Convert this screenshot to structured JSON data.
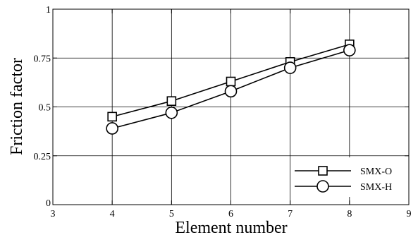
{
  "chart_data": {
    "type": "line",
    "title": "",
    "xlabel": "Element number",
    "ylabel": "Friction factor",
    "xlim": [
      3,
      9
    ],
    "ylim": [
      0,
      1
    ],
    "x_ticks": [
      3,
      4,
      5,
      6,
      7,
      8,
      9
    ],
    "y_ticks": [
      0,
      0.25,
      0.5,
      0.75,
      1
    ],
    "x_tick_labels": [
      "3",
      "4",
      "5",
      "6",
      "7",
      "8",
      "9"
    ],
    "y_tick_labels": [
      "0",
      "0.25",
      "0.5",
      "0.75",
      "1"
    ],
    "grid": true,
    "legend_position": "bottom-right",
    "x": [
      4,
      5,
      6,
      7,
      8
    ],
    "series": [
      {
        "name": "SMX-O",
        "marker": "square",
        "values": [
          0.45,
          0.53,
          0.63,
          0.73,
          0.82
        ]
      },
      {
        "name": "SMX-H",
        "marker": "circle",
        "values": [
          0.39,
          0.47,
          0.58,
          0.7,
          0.79
        ]
      }
    ],
    "colors": {
      "line": "#000000",
      "grid": "#000000",
      "background": "#ffffff"
    }
  }
}
